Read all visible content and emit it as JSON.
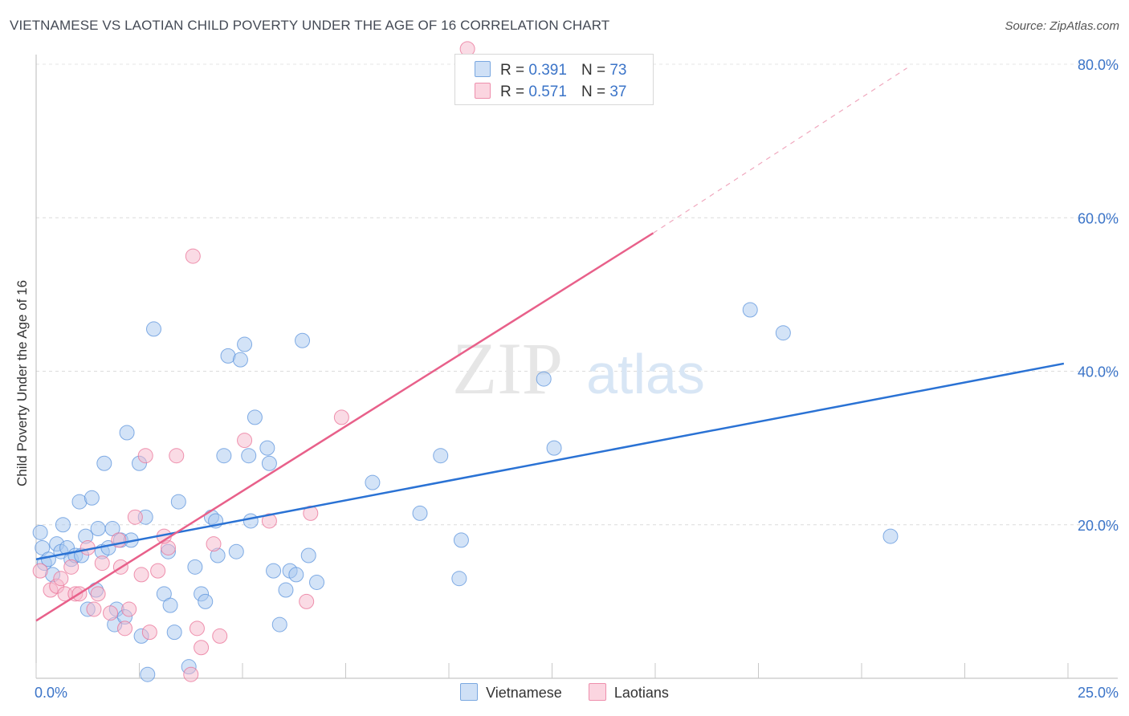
{
  "header": {
    "title": "VIETNAMESE VS LAOTIAN CHILD POVERTY UNDER THE AGE OF 16 CORRELATION CHART",
    "source": "Source: ZipAtlas.com"
  },
  "watermark": {
    "zip": "ZIP",
    "atlas": "atlas"
  },
  "legend_top": [
    {
      "r_label": "R =",
      "r_value": "0.391",
      "n_label": "N =",
      "n_value": "73",
      "color": "#a8c8f0"
    },
    {
      "r_label": "R =",
      "r_value": "0.571",
      "n_label": "N =",
      "n_value": "37",
      "color": "#f5b8cb"
    }
  ],
  "legend_bottom": [
    {
      "label": "Vietnamese",
      "color": "#a8c8f0"
    },
    {
      "label": "Laotians",
      "color": "#f5b8cb"
    }
  ],
  "chart_data": {
    "type": "scatter",
    "title": "VIETNAMESE VS LAOTIAN CHILD POVERTY UNDER THE AGE OF 16 CORRELATION CHART",
    "xlabel": "",
    "ylabel": "Child Poverty Under the Age of 16",
    "xlim": [
      0,
      25
    ],
    "ylim": [
      0,
      80
    ],
    "x_tick_labels": [
      "0.0%",
      "25.0%"
    ],
    "y_tick_labels": [
      "20.0%",
      "40.0%",
      "60.0%",
      "80.0%"
    ],
    "y_ticks": [
      20,
      40,
      60,
      80
    ],
    "grid": true,
    "series": [
      {
        "name": "Vietnamese",
        "color": "#5b93dc",
        "fill": "#a8c8f0",
        "r": 0.391,
        "n": 73,
        "trend": {
          "x": [
            0,
            24.9
          ],
          "y": [
            15.5,
            41.0
          ],
          "dashed_after": null
        },
        "points": [
          [
            0.1,
            19.0
          ],
          [
            0.15,
            17.0
          ],
          [
            0.2,
            15.0
          ],
          [
            0.3,
            15.5
          ],
          [
            0.4,
            13.5
          ],
          [
            0.5,
            17.5
          ],
          [
            0.6,
            16.5
          ],
          [
            0.65,
            20.0
          ],
          [
            0.75,
            17.0
          ],
          [
            0.85,
            15.5
          ],
          [
            0.95,
            16.0
          ],
          [
            1.05,
            23.0
          ],
          [
            1.1,
            16.0
          ],
          [
            1.2,
            18.5
          ],
          [
            1.25,
            9.0
          ],
          [
            1.35,
            23.5
          ],
          [
            1.45,
            11.5
          ],
          [
            1.5,
            19.5
          ],
          [
            1.6,
            16.5
          ],
          [
            1.65,
            28.0
          ],
          [
            1.75,
            17.0
          ],
          [
            1.85,
            19.5
          ],
          [
            1.9,
            7.0
          ],
          [
            1.95,
            9.0
          ],
          [
            2.05,
            18.0
          ],
          [
            2.15,
            8.0
          ],
          [
            2.2,
            32.0
          ],
          [
            2.5,
            28.0
          ],
          [
            2.55,
            5.5
          ],
          [
            2.65,
            21.0
          ],
          [
            2.7,
            0.5
          ],
          [
            2.85,
            45.5
          ],
          [
            3.1,
            11.0
          ],
          [
            3.2,
            16.5
          ],
          [
            3.25,
            9.5
          ],
          [
            3.35,
            6.0
          ],
          [
            3.45,
            23.0
          ],
          [
            3.7,
            1.5
          ],
          [
            3.85,
            14.5
          ],
          [
            4.0,
            11.0
          ],
          [
            4.1,
            10.0
          ],
          [
            4.25,
            21.0
          ],
          [
            4.35,
            20.5
          ],
          [
            4.4,
            16.0
          ],
          [
            4.55,
            29.0
          ],
          [
            4.65,
            42.0
          ],
          [
            4.85,
            16.5
          ],
          [
            4.95,
            41.5
          ],
          [
            5.05,
            43.5
          ],
          [
            5.15,
            29.0
          ],
          [
            5.2,
            20.5
          ],
          [
            5.3,
            34.0
          ],
          [
            5.6,
            30.0
          ],
          [
            5.65,
            28.0
          ],
          [
            5.75,
            14.0
          ],
          [
            5.9,
            7.0
          ],
          [
            6.05,
            11.5
          ],
          [
            6.15,
            14.0
          ],
          [
            6.3,
            13.5
          ],
          [
            6.45,
            44.0
          ],
          [
            6.6,
            16.0
          ],
          [
            6.8,
            12.5
          ],
          [
            8.15,
            25.5
          ],
          [
            9.3,
            21.5
          ],
          [
            9.8,
            29.0
          ],
          [
            10.25,
            13.0
          ],
          [
            10.3,
            18.0
          ],
          [
            12.3,
            39.0
          ],
          [
            12.55,
            30.0
          ],
          [
            17.3,
            48.0
          ],
          [
            18.1,
            45.0
          ],
          [
            20.7,
            18.5
          ],
          [
            2.3,
            18.0
          ]
        ]
      },
      {
        "name": "Laotians",
        "color": "#ea7096",
        "fill": "#f5b8cb",
        "r": 0.571,
        "n": 37,
        "trend": {
          "x": [
            0,
            14.95
          ],
          "y": [
            7.5,
            58.0
          ],
          "dashed_to": [
            21.1,
            79.5
          ]
        },
        "points": [
          [
            0.1,
            14.0
          ],
          [
            0.35,
            11.5
          ],
          [
            0.5,
            12.0
          ],
          [
            0.6,
            13.0
          ],
          [
            0.7,
            11.0
          ],
          [
            0.85,
            14.5
          ],
          [
            0.95,
            11.0
          ],
          [
            1.05,
            11.0
          ],
          [
            1.25,
            17.0
          ],
          [
            1.4,
            9.0
          ],
          [
            1.5,
            11.0
          ],
          [
            1.6,
            15.0
          ],
          [
            1.8,
            8.5
          ],
          [
            2.0,
            18.0
          ],
          [
            2.05,
            14.5
          ],
          [
            2.15,
            6.5
          ],
          [
            2.25,
            9.0
          ],
          [
            2.4,
            21.0
          ],
          [
            2.55,
            13.5
          ],
          [
            2.65,
            29.0
          ],
          [
            2.75,
            6.0
          ],
          [
            2.95,
            14.0
          ],
          [
            3.2,
            17.0
          ],
          [
            3.4,
            29.0
          ],
          [
            3.75,
            0.5
          ],
          [
            3.8,
            55.0
          ],
          [
            3.9,
            6.5
          ],
          [
            4.0,
            4.0
          ],
          [
            4.3,
            17.5
          ],
          [
            4.45,
            5.5
          ],
          [
            5.05,
            31.0
          ],
          [
            5.65,
            20.5
          ],
          [
            6.55,
            10.0
          ],
          [
            6.65,
            21.5
          ],
          [
            7.4,
            34.0
          ],
          [
            10.45,
            82.0
          ],
          [
            3.1,
            18.5
          ]
        ]
      }
    ]
  }
}
